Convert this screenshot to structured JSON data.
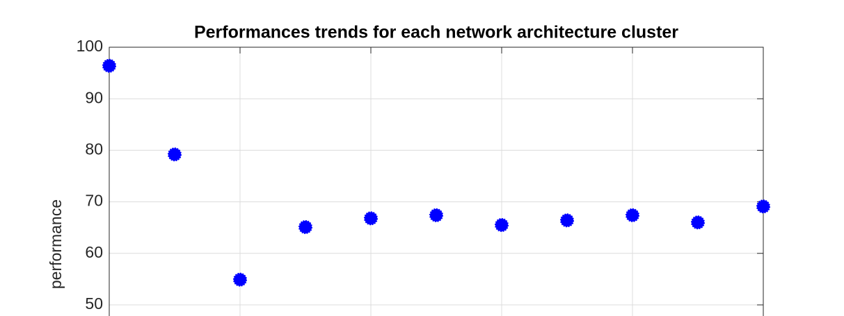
{
  "chart_data": {
    "type": "scatter",
    "title": "Performances trends for each network architecture cluster",
    "y_label": "performance",
    "x": [
      1,
      2,
      3,
      4,
      5,
      6,
      7,
      8,
      9,
      10,
      11
    ],
    "series": [
      {
        "color": "#0000ff",
        "values": [
          96.4,
          79.2,
          54.9,
          65.1,
          66.8,
          67.4,
          65.5,
          66.4,
          67.4,
          66.0,
          69.1
        ]
      }
    ],
    "xlim": [
      1,
      11
    ],
    "xticks": [
      1,
      3,
      5,
      7,
      9,
      11
    ],
    "ylim": [
      50,
      100
    ],
    "yticks": [
      50,
      60,
      70,
      80,
      90,
      100
    ],
    "grid": true
  }
}
